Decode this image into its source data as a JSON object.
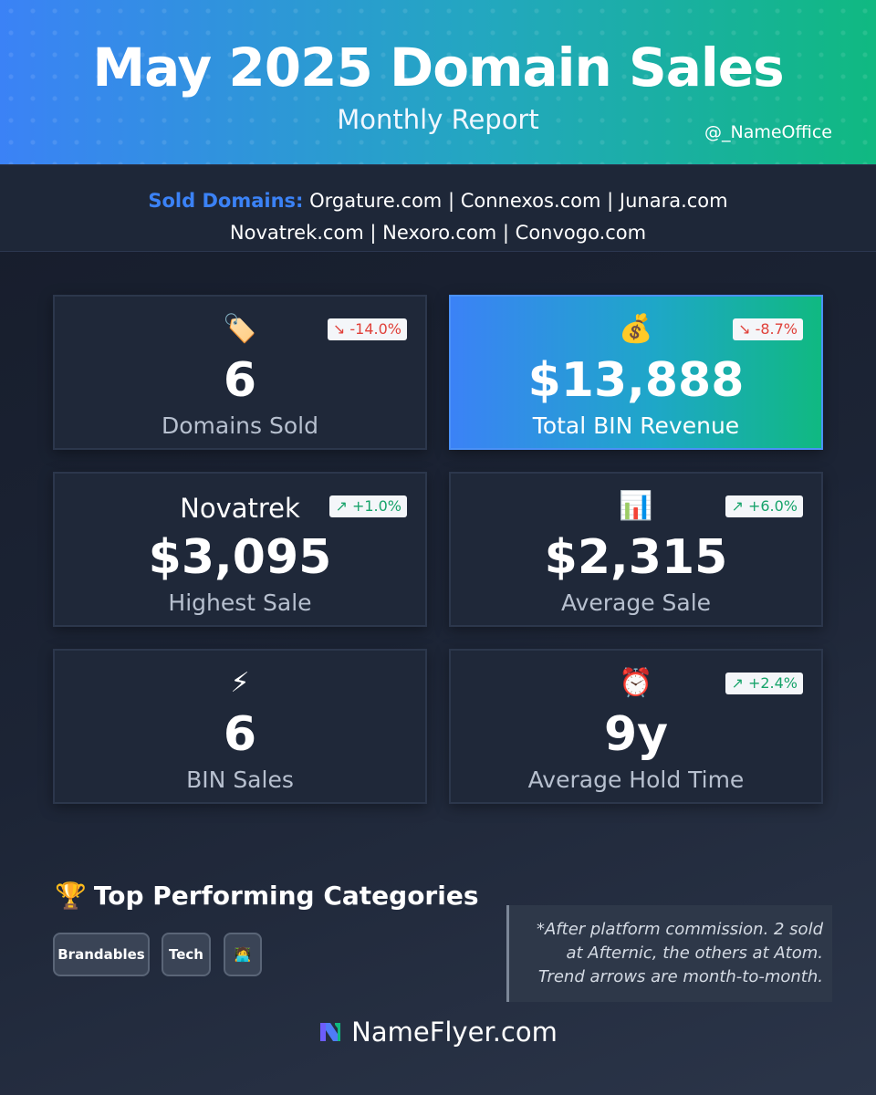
{
  "header": {
    "title": "May 2025 Domain Sales",
    "subtitle": "Monthly Report",
    "handle": "@_NameOffice"
  },
  "sold": {
    "label": "Sold Domains:",
    "line1": " Orgature.com | Connexos.com | Junara.com",
    "line2": "Novatrek.com | Nexoro.com | Convogo.com"
  },
  "stats": {
    "domains_sold": {
      "icon": "tag-icon",
      "glyph": "🏷️",
      "value": "6",
      "caption": "Domains Sold",
      "trend": "↘ -14.0%"
    },
    "revenue": {
      "icon": "money-bag-icon",
      "glyph": "💰",
      "value": "$13,888",
      "caption": "Total BIN Revenue",
      "trend": "↘ -8.7%"
    },
    "highest": {
      "name": "Novatrek",
      "value": "$3,095",
      "caption": "Highest Sale",
      "trend": "↗ +1.0%"
    },
    "average": {
      "icon": "bar-chart-icon",
      "glyph": "📊",
      "value": "$2,315",
      "caption": "Average Sale",
      "trend": "↗ +6.0%"
    },
    "bin_sales": {
      "icon": "lightning-icon",
      "glyph": "⚡",
      "value": "6",
      "caption": "BIN Sales"
    },
    "hold_time": {
      "icon": "alarm-clock-icon",
      "glyph": "⏰",
      "value": "9y",
      "caption": "Average Hold Time",
      "trend": "↗ +2.4%"
    }
  },
  "categories": {
    "title": "Top Performing Categories",
    "trophy": "🏆",
    "chips": [
      "Brandables",
      "Tech",
      "🧑‍💻"
    ]
  },
  "note": {
    "line1": "*After platform commission. 2 sold",
    "line2": "at Afternic, the others at Atom.",
    "line3": "Trend arrows are month-to-month."
  },
  "brand": {
    "name": "NameFlyer.com"
  },
  "colors": {
    "accent_blue": "#3b82f6",
    "accent_green": "#10b981",
    "trend_down": "#e0413a",
    "trend_up": "#16a36a"
  }
}
